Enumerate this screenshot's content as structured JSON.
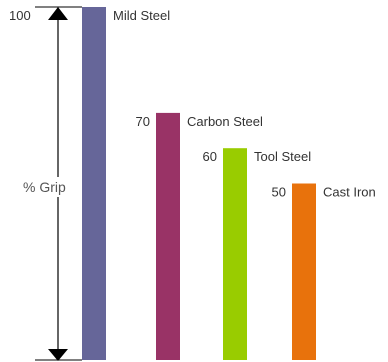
{
  "chart_data": {
    "type": "bar",
    "ylabel": "% Grip",
    "ylim": [
      0,
      100
    ],
    "y_tick_top": "100",
    "categories": [
      "Mild Steel",
      "Carbon Steel",
      "Tool Steel",
      "Cast Iron"
    ],
    "values": [
      100,
      70,
      60,
      50
    ],
    "value_labels": [
      "",
      "70",
      "60",
      "50"
    ],
    "colors": [
      "#666699",
      "#993366",
      "#99cc00",
      "#e8720c"
    ]
  }
}
